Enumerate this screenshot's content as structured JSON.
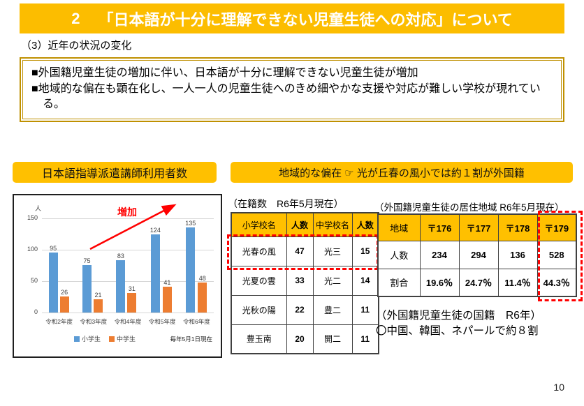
{
  "header": {
    "number": "2",
    "title": "「日本語が十分に理解できない児童生徒への対応」について"
  },
  "subtitle": "（3）近年の状況の変化",
  "summary_box": {
    "bullet1": "■外国籍児童生徒の増加に伴い、日本語が十分に理解できない児童生徒が増加",
    "bullet2": "■地域的な偏在も顕在化し、一人一人の児童生徒へのきめ細やかな支援や対応が難しい学校が現れている。"
  },
  "section_labels": {
    "left": "日本語指導派遣講師利用者数",
    "right": "地域的な偏在 ☞ 光が丘春の風小では約１割が外国籍"
  },
  "chart_data": {
    "type": "bar",
    "title": "日本語指導派遣講師利用者数",
    "unit_label": "人",
    "categories": [
      "令和2年度",
      "令和3年度",
      "令和4年度",
      "令和5年度",
      "令和6年度"
    ],
    "series": [
      {
        "name": "小学生",
        "color": "#5B9BD5",
        "values": [
          95,
          75,
          83,
          124,
          135
        ]
      },
      {
        "name": "中学生",
        "color": "#ED7D31",
        "values": [
          26,
          21,
          31,
          41,
          48
        ]
      }
    ],
    "ylim": [
      0,
      150
    ],
    "yticks": [
      150,
      100,
      50,
      0
    ],
    "grid": true,
    "legend_position": "bottom",
    "annotation": "増加",
    "note": "毎年5月1日現在"
  },
  "roster_table": {
    "title": "（在籍数　R6年5月現在）",
    "headers": [
      "小学校名",
      "人数",
      "中学校名",
      "人数"
    ],
    "rows": [
      [
        "光春の風",
        "47",
        "光三",
        "15"
      ],
      [
        "光夏の雲",
        "33",
        "光二",
        "14"
      ],
      [
        "光秋の陽",
        "22",
        "豊二",
        "11"
      ],
      [
        "豊玉南",
        "20",
        "開二",
        "11"
      ]
    ],
    "highlighted_row_index": 0
  },
  "region_table": {
    "title": "（外国籍児童生徒の居住地域 R6年5月現在）",
    "headers": [
      "地域",
      "〒176",
      "〒177",
      "〒178",
      "〒179"
    ],
    "rows": [
      [
        "人数",
        "234",
        "294",
        "136",
        "528"
      ],
      [
        "割合",
        "19.6％",
        "24.7％",
        "11.4％",
        "44.3％"
      ]
    ],
    "highlighted_column_index": 4
  },
  "nationality_note": {
    "line1": "（外国籍児童生徒の国籍　R6年）",
    "line2": "〇中国、韓国、ネパールで約８割"
  },
  "page_number": "10",
  "colors": {
    "accent_gold": "#FFC000",
    "header_gold": "#FCBD00",
    "box_border_gold": "#BF9000",
    "bar_blue": "#5B9BD5",
    "bar_orange": "#ED7D31",
    "highlight_red": "#FF0000"
  }
}
